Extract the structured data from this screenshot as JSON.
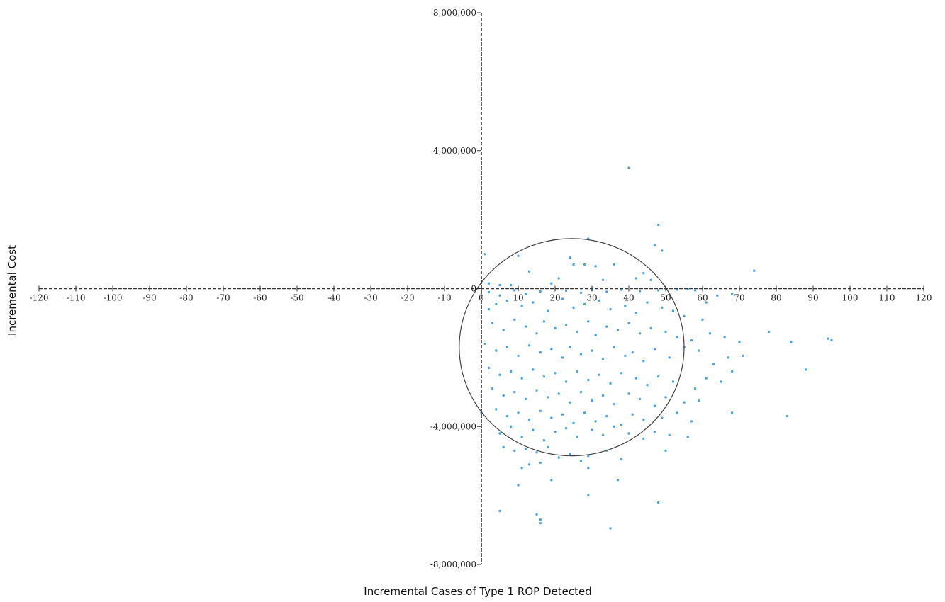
{
  "chart_data": {
    "type": "scatter",
    "xlabel": "Incremental Cases of Type 1 ROP Detected",
    "ylabel": "Incremental Cost",
    "xlim": [
      -120,
      120
    ],
    "ylim": [
      -8000000,
      8000000
    ],
    "x_ticks": [
      -120,
      -110,
      -100,
      -90,
      -80,
      -70,
      -60,
      -50,
      -40,
      -30,
      -20,
      -10,
      0,
      10,
      20,
      30,
      40,
      50,
      60,
      70,
      80,
      90,
      100,
      110,
      120
    ],
    "x_tick_labels": [
      "-120",
      "-110",
      "-100",
      "-90",
      "-80",
      "-70",
      "-60",
      "-50",
      "-40",
      "-30",
      "-20",
      "-10",
      "0",
      "10",
      "20",
      "30",
      "40",
      "50",
      "60",
      "70",
      "80",
      "90",
      "100",
      "110",
      "120"
    ],
    "y_ticks": [
      8000000,
      4000000,
      0,
      -4000000,
      -8000000
    ],
    "y_tick_labels": [
      "8,000,000",
      "4,000,000",
      "0",
      "-4,000,000",
      "-8,000,000"
    ],
    "grid": false,
    "point_color": "#4da3e0",
    "axis_color": "#333333",
    "confidence_ellipse": {
      "center": [
        24.5,
        -1700000
      ],
      "radius_x": 30.5,
      "radius_y": 3150000
    },
    "series": [
      {
        "points": [
          [
            40,
            3500000
          ],
          [
            48,
            1850000
          ],
          [
            29,
            1450000
          ],
          [
            47,
            1250000
          ],
          [
            49,
            1100000
          ],
          [
            74,
            520000
          ],
          [
            10,
            950000
          ],
          [
            24,
            900000
          ],
          [
            25,
            700000
          ],
          [
            36,
            700000
          ],
          [
            31,
            650000
          ],
          [
            28,
            700000
          ],
          [
            1,
            1000000
          ],
          [
            2,
            150000
          ],
          [
            5,
            100000
          ],
          [
            13,
            500000
          ],
          [
            21,
            300000
          ],
          [
            33,
            250000
          ],
          [
            42,
            300000
          ],
          [
            46,
            250000
          ],
          [
            44,
            450000
          ],
          [
            19,
            150000
          ],
          [
            8,
            100000
          ],
          [
            2,
            -100000
          ],
          [
            5,
            -200000
          ],
          [
            9,
            -50000
          ],
          [
            12,
            -150000
          ],
          [
            16,
            -80000
          ],
          [
            23,
            -60000
          ],
          [
            27,
            -120000
          ],
          [
            30,
            -40000
          ],
          [
            34,
            -90000
          ],
          [
            38,
            -30000
          ],
          [
            43,
            -70000
          ],
          [
            48,
            -50000
          ],
          [
            53,
            -30000
          ],
          [
            56,
            -10000
          ],
          [
            58,
            -50000
          ],
          [
            61,
            -400000
          ],
          [
            64,
            -200000
          ],
          [
            68,
            -150000
          ],
          [
            2,
            -600000
          ],
          [
            4,
            -450000
          ],
          [
            7,
            -350000
          ],
          [
            11,
            -500000
          ],
          [
            14,
            -400000
          ],
          [
            18,
            -650000
          ],
          [
            22,
            -300000
          ],
          [
            25,
            -550000
          ],
          [
            28,
            -450000
          ],
          [
            32,
            -350000
          ],
          [
            35,
            -600000
          ],
          [
            39,
            -500000
          ],
          [
            42,
            -700000
          ],
          [
            45,
            -400000
          ],
          [
            49,
            -550000
          ],
          [
            52,
            -650000
          ],
          [
            55,
            -800000
          ],
          [
            60,
            -900000
          ],
          [
            3,
            -1000000
          ],
          [
            6,
            -1200000
          ],
          [
            9,
            -900000
          ],
          [
            12,
            -1100000
          ],
          [
            15,
            -1300000
          ],
          [
            17,
            -950000
          ],
          [
            20,
            -1150000
          ],
          [
            23,
            -1050000
          ],
          [
            26,
            -1250000
          ],
          [
            29,
            -950000
          ],
          [
            31,
            -1350000
          ],
          [
            34,
            -1100000
          ],
          [
            37,
            -1200000
          ],
          [
            40,
            -1000000
          ],
          [
            43,
            -1300000
          ],
          [
            46,
            -1150000
          ],
          [
            50,
            -1250000
          ],
          [
            53,
            -1400000
          ],
          [
            57,
            -1500000
          ],
          [
            62,
            -1300000
          ],
          [
            66,
            -1400000
          ],
          [
            78,
            -1250000
          ],
          [
            84,
            -1550000
          ],
          [
            94,
            -1450000
          ],
          [
            95,
            -1500000
          ],
          [
            70,
            -1550000
          ],
          [
            1,
            -1600000
          ],
          [
            4,
            -1800000
          ],
          [
            7,
            -1700000
          ],
          [
            10,
            -1950000
          ],
          [
            13,
            -1650000
          ],
          [
            16,
            -1850000
          ],
          [
            19,
            -1750000
          ],
          [
            22,
            -2000000
          ],
          [
            24,
            -1700000
          ],
          [
            27,
            -1900000
          ],
          [
            30,
            -1800000
          ],
          [
            33,
            -2050000
          ],
          [
            36,
            -1700000
          ],
          [
            39,
            -1950000
          ],
          [
            41,
            -1850000
          ],
          [
            44,
            -2100000
          ],
          [
            47,
            -1750000
          ],
          [
            51,
            -2000000
          ],
          [
            55,
            -1700000
          ],
          [
            59,
            -1800000
          ],
          [
            63,
            -2200000
          ],
          [
            67,
            -2000000
          ],
          [
            71,
            -1950000
          ],
          [
            88,
            -2350000
          ],
          [
            2,
            -2300000
          ],
          [
            5,
            -2500000
          ],
          [
            8,
            -2400000
          ],
          [
            11,
            -2600000
          ],
          [
            14,
            -2350000
          ],
          [
            17,
            -2550000
          ],
          [
            20,
            -2450000
          ],
          [
            23,
            -2700000
          ],
          [
            26,
            -2400000
          ],
          [
            29,
            -2650000
          ],
          [
            32,
            -2500000
          ],
          [
            35,
            -2750000
          ],
          [
            38,
            -2450000
          ],
          [
            42,
            -2600000
          ],
          [
            45,
            -2800000
          ],
          [
            48,
            -2550000
          ],
          [
            52,
            -2700000
          ],
          [
            58,
            -2900000
          ],
          [
            61,
            -2600000
          ],
          [
            65,
            -2700000
          ],
          [
            68,
            -2400000
          ],
          [
            3,
            -2900000
          ],
          [
            6,
            -3100000
          ],
          [
            9,
            -3000000
          ],
          [
            12,
            -3200000
          ],
          [
            15,
            -2950000
          ],
          [
            18,
            -3150000
          ],
          [
            21,
            -3050000
          ],
          [
            24,
            -3300000
          ],
          [
            27,
            -3000000
          ],
          [
            30,
            -3250000
          ],
          [
            33,
            -3100000
          ],
          [
            36,
            -3350000
          ],
          [
            40,
            -3050000
          ],
          [
            43,
            -3200000
          ],
          [
            47,
            -3400000
          ],
          [
            50,
            -3150000
          ],
          [
            55,
            -3300000
          ],
          [
            59,
            -3250000
          ],
          [
            4,
            -3500000
          ],
          [
            7,
            -3700000
          ],
          [
            10,
            -3600000
          ],
          [
            13,
            -3800000
          ],
          [
            16,
            -3550000
          ],
          [
            19,
            -3750000
          ],
          [
            22,
            -3650000
          ],
          [
            25,
            -3900000
          ],
          [
            28,
            -3600000
          ],
          [
            31,
            -3850000
          ],
          [
            34,
            -3700000
          ],
          [
            38,
            -3950000
          ],
          [
            41,
            -3650000
          ],
          [
            44,
            -3800000
          ],
          [
            49,
            -3750000
          ],
          [
            53,
            -3600000
          ],
          [
            57,
            -3850000
          ],
          [
            68,
            -3600000
          ],
          [
            83,
            -3700000
          ],
          [
            0,
            -3600000
          ],
          [
            5,
            -4200000
          ],
          [
            8,
            -4000000
          ],
          [
            11,
            -4300000
          ],
          [
            14,
            -4100000
          ],
          [
            17,
            -4400000
          ],
          [
            20,
            -4150000
          ],
          [
            23,
            -4050000
          ],
          [
            26,
            -4300000
          ],
          [
            30,
            -4100000
          ],
          [
            33,
            -4250000
          ],
          [
            36,
            -4000000
          ],
          [
            40,
            -4200000
          ],
          [
            44,
            -4350000
          ],
          [
            47,
            -4150000
          ],
          [
            51,
            -4250000
          ],
          [
            56,
            -4300000
          ],
          [
            6,
            -4600000
          ],
          [
            9,
            -4700000
          ],
          [
            12,
            -4650000
          ],
          [
            15,
            -4750000
          ],
          [
            18,
            -4600000
          ],
          [
            21,
            -4900000
          ],
          [
            24,
            -4800000
          ],
          [
            27,
            -5000000
          ],
          [
            29,
            -4850000
          ],
          [
            34,
            -4700000
          ],
          [
            38,
            -4950000
          ],
          [
            50,
            -4700000
          ],
          [
            11,
            -5200000
          ],
          [
            13,
            -5100000
          ],
          [
            16,
            -5050000
          ],
          [
            29,
            -5200000
          ],
          [
            37,
            -5550000
          ],
          [
            19,
            -5550000
          ],
          [
            10,
            -5700000
          ],
          [
            29,
            -6000000
          ],
          [
            48,
            -6200000
          ],
          [
            5,
            -6450000
          ],
          [
            15,
            -6550000
          ],
          [
            16,
            -6700000
          ],
          [
            16,
            -6800000
          ],
          [
            35,
            -6950000
          ]
        ]
      }
    ]
  }
}
